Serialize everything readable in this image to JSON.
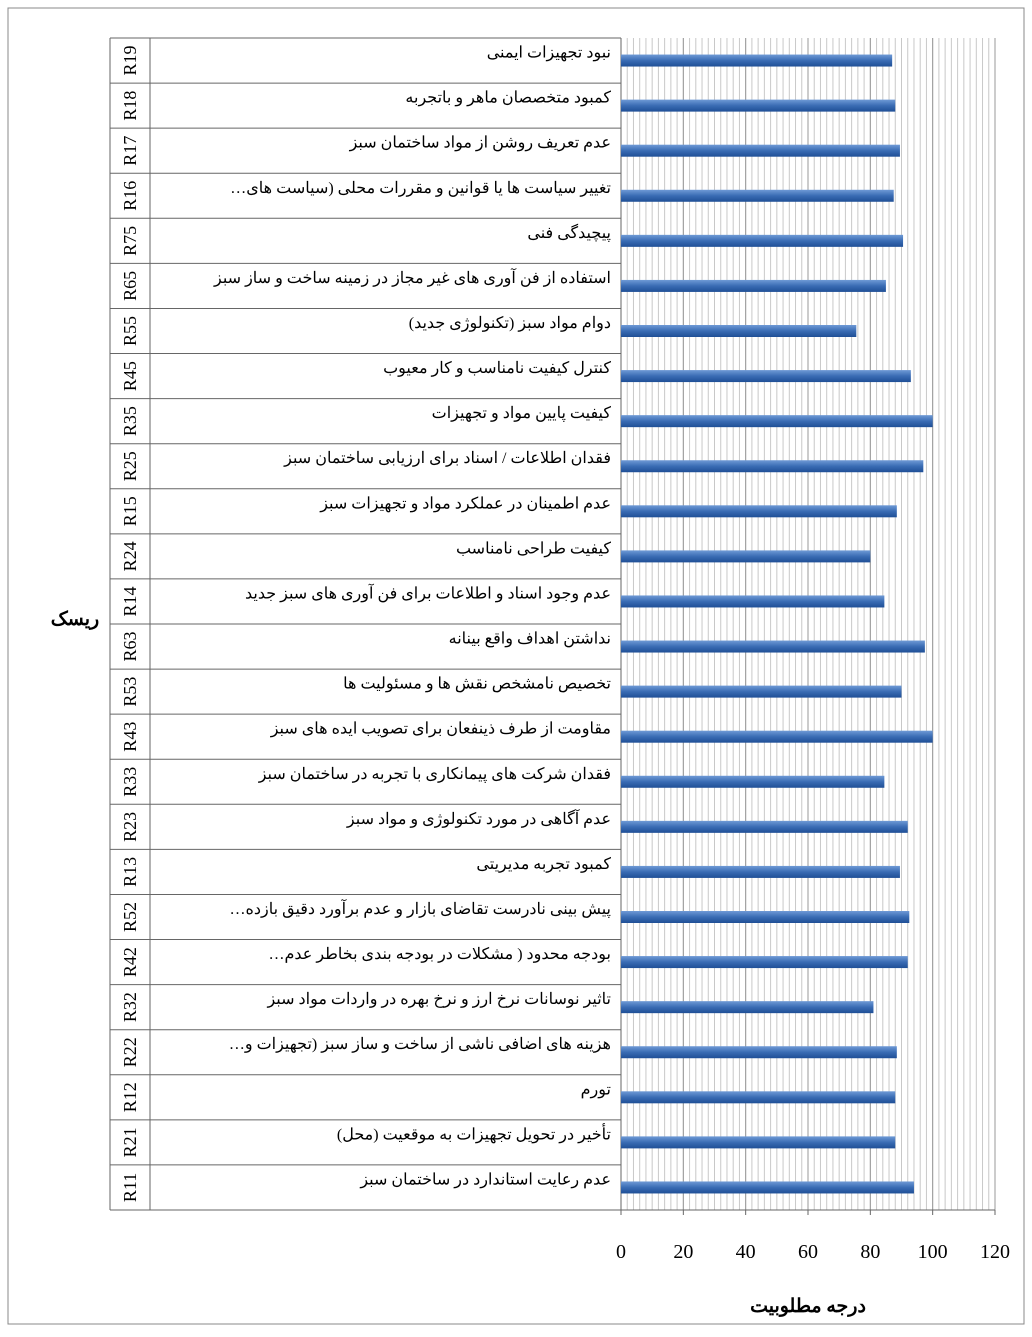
{
  "chart_data": {
    "type": "barh",
    "xlabel": "درجه مطلوبیت",
    "ylabel": "ریسک",
    "categories": [
      "R11",
      "R21",
      "R12",
      "R22",
      "R32",
      "R42",
      "R52",
      "R13",
      "R23",
      "R33",
      "R43",
      "R53",
      "R63",
      "R14",
      "R24",
      "R15",
      "R25",
      "R35",
      "R45",
      "R55",
      "R65",
      "R75",
      "R16",
      "R17",
      "R18",
      "R19"
    ],
    "descriptions": [
      "عدم رعایت استاندارد در ساختمان  سبز",
      "تأخیر در تحویل تجهیزات به موقعیت (محل)",
      "تورم",
      "هزینه های اضافی ناشی از ساخت و ساز سبز (تجهیزات و…",
      "تاثیر نوسانات نرخ ارز و نرخ بهره در واردات مواد سبز",
      "بودجه محدود ( مشکلات در بودجه بندی بخاطر عدم…",
      "پیش بینی نادرست تقاضای بازار و عدم برآورد دقیق بازده…",
      "کمبود تجربه مدیریتی",
      "عدم آگاهی در مورد تکنولوژی و مواد سبز",
      "فقدان شرکت های پیمانکاری با تجربه در ساختمان سبز",
      "مقاومت از طرف ذینفعان برای تصویب ایده های سبز",
      "تخصیص نامشخص نقش ها و مسئولیت ها",
      "نداشتن اهداف واقع بینانه",
      "عدم وجود اسناد و اطلاعات برای فن آوری های سبز جدید",
      "کیفیت طراحی نامناسب",
      "عدم اطمینان در عملکرد مواد و تجهیزات سبز",
      "فقدان اطلاعات / اسناد برای ارزیابی ساختمان سبز",
      "کیفیت پایین مواد و تجهیزات",
      "کنترل کیفیت نامناسب و کار معیوب",
      "دوام مواد سبز (تکنولوژی جدید)",
      "استفاده از فن آوری های غیر مجاز در زمینه ساخت و ساز سبز",
      "پیچیدگی فنی",
      "تغییر سیاست ها یا قوانین و مقررات محلی (سیاست های…",
      "عدم تعریف روشن از مواد ساختمان سبز",
      "کمبود متخصصان ماهر و باتجربه",
      "نبود تجهیزات ایمنی"
    ],
    "values": [
      94,
      88,
      88,
      88.5,
      81,
      92,
      92.5,
      89.5,
      92,
      84.5,
      100,
      90,
      97.5,
      84.5,
      80,
      88.5,
      97,
      100,
      93,
      75.5,
      85,
      90.5,
      87.5,
      89.5,
      88,
      87
    ],
    "color": "#3a6cb4",
    "xlim": [
      0,
      120
    ],
    "xticks": [
      0,
      20,
      40,
      60,
      80,
      100,
      120
    ],
    "grid": true,
    "minor_grid_step": 2
  }
}
